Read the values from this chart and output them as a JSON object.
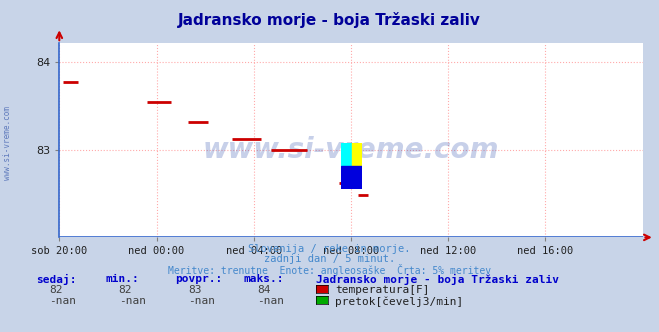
{
  "title": "Jadransko morje - boja Tržaski zaliv",
  "title_color": "#000099",
  "bg_color": "#c8d4e8",
  "plot_bg_color": "#ffffff",
  "grid_color": "#ffaaaa",
  "left_spine_color": "#3366cc",
  "bottom_line_color": "#3366cc",
  "arrow_color": "#cc0000",
  "watermark": "www.si-vreme.com",
  "watermark_color": "#2244aa",
  "watermark_alpha": 0.25,
  "subtitle1": "Slovenija / reke in morje.",
  "subtitle2": "zadnji dan / 5 minut.",
  "subtitle3": "Meritve: trenutne  Enote: angleosaške  Črta: 5% meritev",
  "subtitle_color": "#4488cc",
  "footer_label_color": "#0000cc",
  "footer_value_color": "#404040",
  "ylim": [
    82.0,
    84.22
  ],
  "yticks": [
    83,
    84
  ],
  "xlim": [
    0,
    24
  ],
  "xtick_labels": [
    "sob 20:00",
    "ned 00:00",
    "ned 04:00",
    "ned 08:00",
    "ned 12:00",
    "ned 16:00"
  ],
  "xtick_positions": [
    0,
    4,
    8,
    12,
    16,
    20
  ],
  "temp_segments": [
    {
      "x": [
        0.15,
        0.75
      ],
      "y": [
        83.78,
        83.78
      ]
    },
    {
      "x": [
        3.6,
        4.6
      ],
      "y": [
        83.55,
        83.55
      ]
    },
    {
      "x": [
        5.3,
        6.1
      ],
      "y": [
        83.32,
        83.32
      ]
    },
    {
      "x": [
        7.1,
        8.3
      ],
      "y": [
        83.13,
        83.13
      ]
    },
    {
      "x": [
        8.7,
        10.2
      ],
      "y": [
        83.0,
        83.0
      ]
    },
    {
      "x": [
        11.5,
        12.0
      ],
      "y": [
        82.62,
        82.62
      ]
    },
    {
      "x": [
        12.3,
        12.7
      ],
      "y": [
        82.48,
        82.48
      ]
    }
  ],
  "temp_color": "#cc0000",
  "temp_linewidth": 2.0,
  "legend_station": "Jadransko morje - boja Tržaski zaliv",
  "legend_temp_label": "temperatura[F]",
  "legend_flow_label": "pretok[čevelj3/min]",
  "legend_temp_color": "#cc0000",
  "legend_flow_color": "#00aa00",
  "sedaj_val": "82",
  "min_val": "82",
  "povpr_val": "83",
  "maks_val": "84",
  "sedaj_nan": "-nan",
  "min_nan": "-nan",
  "povpr_nan": "-nan",
  "maks_nan": "-nan"
}
